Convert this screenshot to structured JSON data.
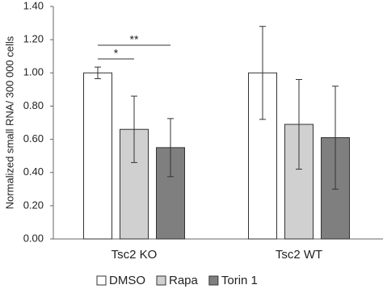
{
  "chart_data": {
    "type": "bar",
    "y_label": "Normalized small RNA/ 300 000 cells",
    "categories": [
      "Tsc2 KO",
      "Tsc2 WT"
    ],
    "series": [
      {
        "name": "DMSO",
        "color": "#ffffff",
        "values": [
          1.0,
          1.0
        ],
        "errors": [
          0.035,
          0.28
        ]
      },
      {
        "name": "Rapa",
        "color": "#d0d0d0",
        "values": [
          0.66,
          0.69
        ],
        "errors": [
          0.2,
          0.27
        ]
      },
      {
        "name": "Torin 1",
        "color": "#7f7f7f",
        "values": [
          0.55,
          0.61
        ],
        "errors": [
          0.175,
          0.31
        ]
      }
    ],
    "ylim": [
      0,
      1.4
    ],
    "yticks": [
      {
        "value": 0,
        "label": "0.00"
      },
      {
        "value": 0.2,
        "label": "0.20"
      },
      {
        "value": 0.4,
        "label": "0.40"
      },
      {
        "value": 0.6,
        "label": "0.60"
      },
      {
        "value": 0.8,
        "label": "0.80"
      },
      {
        "value": 1.0,
        "label": "1.00"
      },
      {
        "value": 1.2,
        "label": "1.20"
      },
      {
        "value": 1.4,
        "label": "1.40"
      }
    ],
    "annotations": [
      "*",
      "**"
    ],
    "legend": "bottom"
  }
}
